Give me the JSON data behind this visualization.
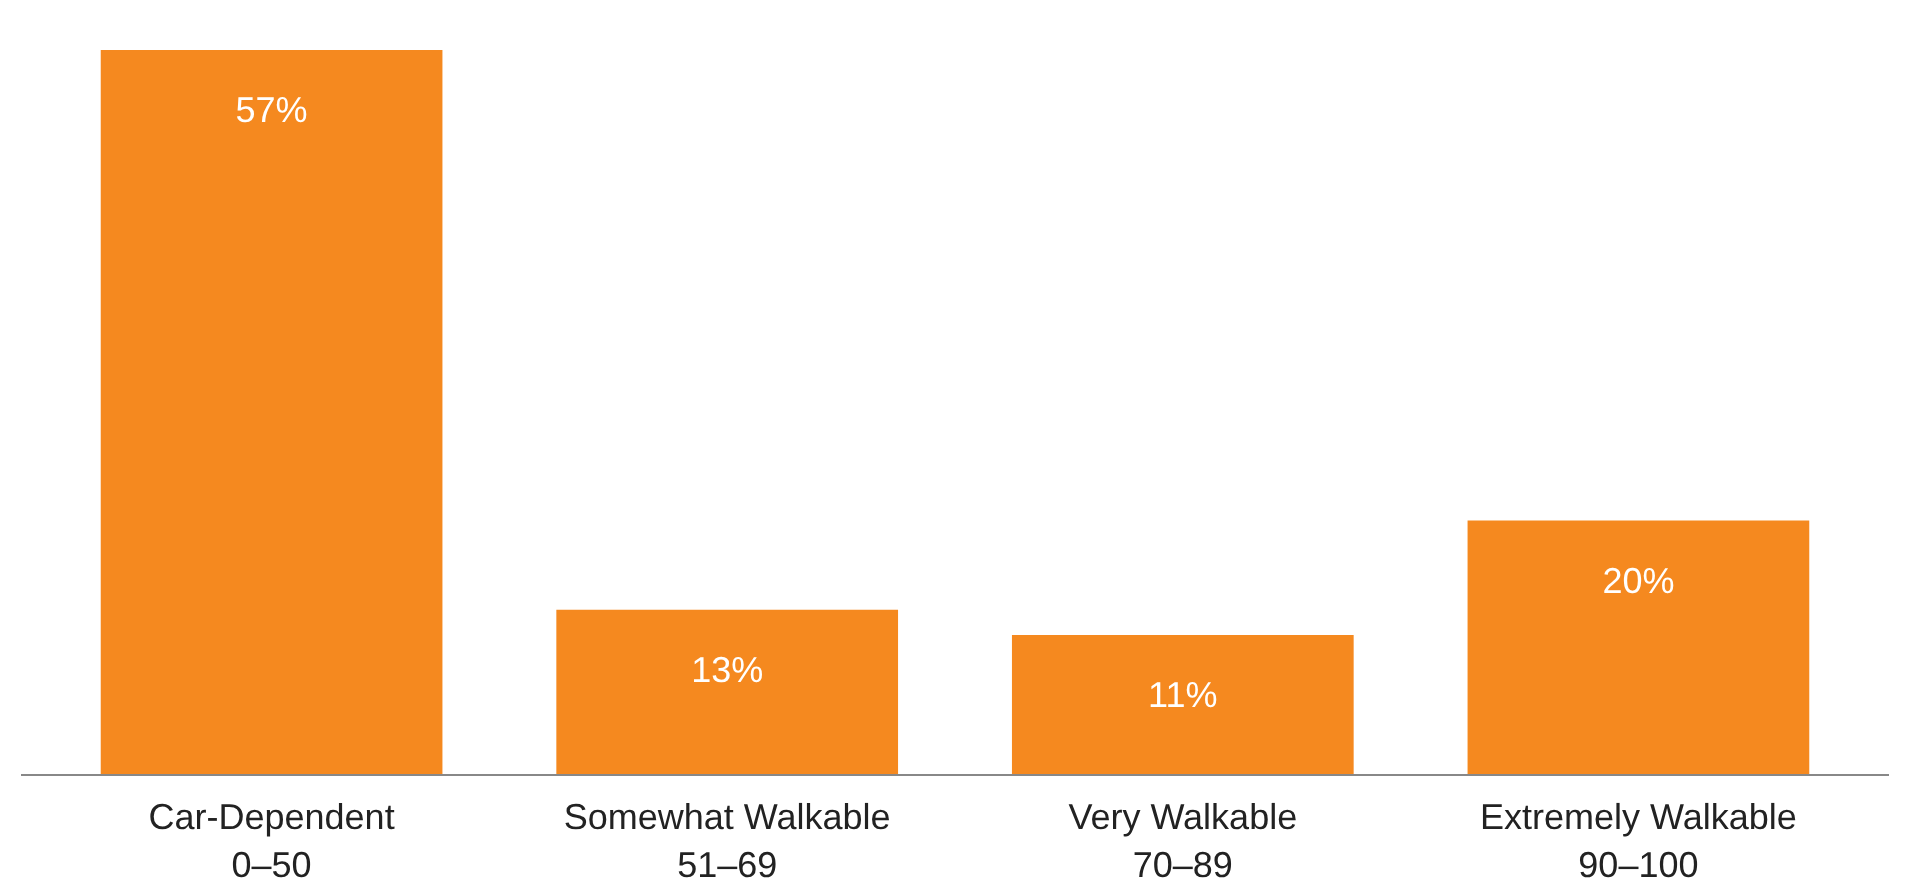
{
  "chart_data": {
    "type": "bar",
    "categories": [
      "Car-Dependent\n0–50",
      "Somewhat Walkable\n51–69",
      "Very Walkable\n70–89",
      "Extremely Walkable\n90–100"
    ],
    "values": [
      57,
      13,
      11,
      20
    ],
    "value_labels": [
      "57%",
      "13%",
      "11%",
      "20%"
    ],
    "color": "#f5891f",
    "grid": false
  }
}
